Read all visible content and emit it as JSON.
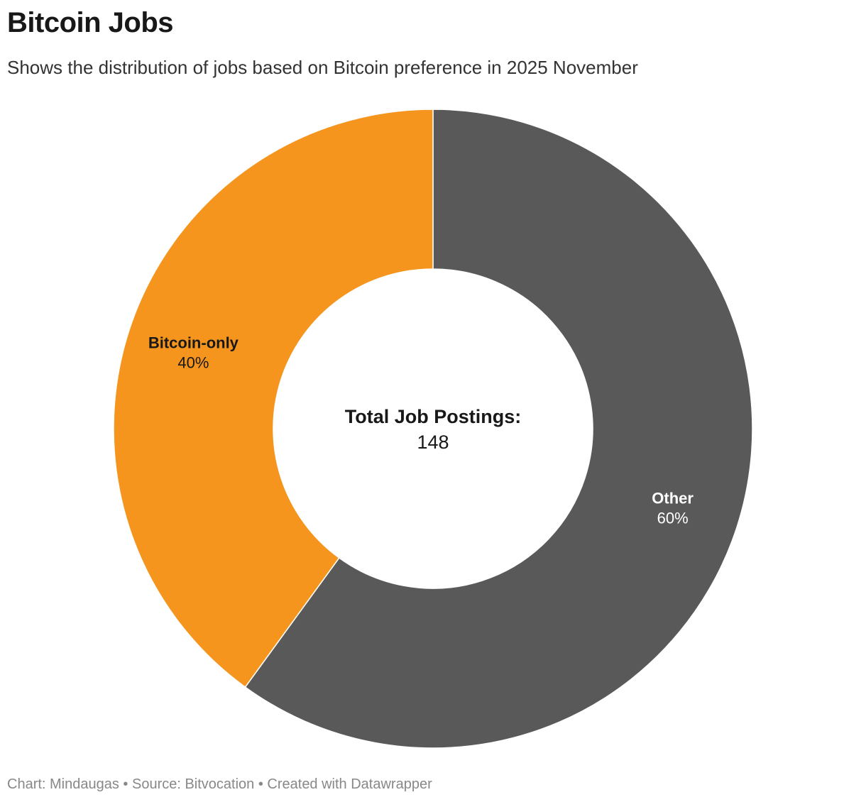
{
  "header": {
    "title": "Bitcoin Jobs",
    "subtitle": "Shows the distribution of jobs based on Bitcoin preference in 2025 November"
  },
  "chart_data": {
    "type": "pie",
    "variant": "donut",
    "title": "Bitcoin Jobs",
    "subtitle": "Shows the distribution of jobs based on Bitcoin preference in 2025 November",
    "categories": [
      "Other",
      "Bitcoin-only"
    ],
    "values": [
      60,
      40
    ],
    "value_labels": [
      "60%",
      "40%"
    ],
    "colors": [
      "#595959",
      "#f5951d"
    ],
    "label_colors": [
      "#ffffff",
      "#181818"
    ],
    "center": {
      "label": "Total Job Postings:",
      "value": "148"
    }
  },
  "footer": {
    "text": "Chart: Mindaugas • Source: Bitvocation • Created with Datawrapper"
  }
}
